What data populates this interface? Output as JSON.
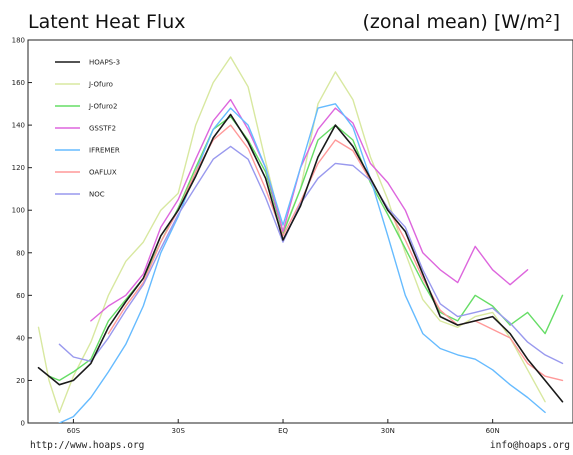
{
  "chart_data": {
    "type": "line",
    "title": "Latent Heat Flux",
    "subtitle": "(zonal mean) [W/m²]",
    "x": [
      -70,
      -67,
      -64,
      -60,
      -55,
      -50,
      -45,
      -40,
      -35,
      -30,
      -25,
      -20,
      -15,
      -10,
      -5,
      0,
      5,
      10,
      15,
      20,
      25,
      30,
      35,
      40,
      45,
      50,
      55,
      60,
      65,
      70,
      75,
      80
    ],
    "xlim": [
      -73,
      83
    ],
    "ylim": [
      0,
      180
    ],
    "x_ticks": [
      -60,
      -30,
      0,
      30,
      60
    ],
    "x_tick_labels": [
      "60S",
      "30S",
      "EQ",
      "30N",
      "60N"
    ],
    "y_ticks": [
      0,
      20,
      40,
      60,
      80,
      100,
      120,
      140,
      160,
      180
    ],
    "y_tick_labels": [
      "0",
      "20",
      "40",
      "60",
      "80",
      "100",
      "120",
      "140",
      "160",
      "180"
    ],
    "grid": false,
    "legend_position": "top-left",
    "series": [
      {
        "name": "HOAPS-3",
        "color": "#1a1a1a",
        "values": [
          26,
          22,
          18,
          20,
          28,
          45,
          57,
          68,
          88,
          100,
          116,
          134,
          145,
          132,
          115,
          86,
          102,
          125,
          140,
          130,
          115,
          100,
          90,
          70,
          50,
          46,
          48,
          50,
          42,
          30,
          20,
          10
        ]
      },
      {
        "name": "J-Ofuro",
        "color": "#d8e8a0",
        "values": [
          45,
          20,
          5,
          22,
          38,
          60,
          76,
          85,
          100,
          108,
          140,
          160,
          172,
          158,
          123,
          90,
          110,
          150,
          165,
          152,
          125,
          105,
          80,
          58,
          48,
          45,
          50,
          52,
          40,
          25,
          10,
          null
        ]
      },
      {
        "name": "J-Ofuro2",
        "color": "#66dd66",
        "values": [
          null,
          22,
          20,
          24,
          30,
          48,
          58,
          68,
          85,
          101,
          120,
          138,
          144,
          133,
          118,
          89,
          110,
          133,
          140,
          133,
          113,
          98,
          82,
          66,
          52,
          48,
          60,
          55,
          46,
          52,
          42,
          60
        ]
      },
      {
        "name": "GSSTF2",
        "color": "#dd66dd",
        "values": [
          null,
          null,
          null,
          null,
          48,
          55,
          60,
          70,
          92,
          105,
          124,
          142,
          152,
          138,
          120,
          90,
          120,
          138,
          148,
          141,
          122,
          113,
          100,
          80,
          72,
          66,
          83,
          72,
          65,
          72,
          null,
          null
        ]
      },
      {
        "name": "IFREMER",
        "color": "#66bbff",
        "values": [
          null,
          null,
          0,
          3,
          12,
          24,
          37,
          55,
          80,
          97,
          118,
          138,
          148,
          140,
          120,
          93,
          120,
          148,
          150,
          139,
          115,
          88,
          60,
          42,
          35,
          32,
          30,
          25,
          18,
          12,
          5,
          null
        ]
      },
      {
        "name": "OAFLUX",
        "color": "#ff9999",
        "values": [
          null,
          null,
          null,
          null,
          null,
          42,
          55,
          66,
          85,
          100,
          118,
          133,
          140,
          129,
          110,
          88,
          104,
          122,
          133,
          128,
          114,
          101,
          86,
          68,
          53,
          46,
          48,
          44,
          40,
          28,
          22,
          20
        ]
      },
      {
        "name": "NOC",
        "color": "#9999ee",
        "values": [
          null,
          null,
          37,
          31,
          29,
          40,
          53,
          65,
          82,
          98,
          111,
          124,
          130,
          124,
          106,
          85,
          103,
          115,
          122,
          121,
          114,
          101,
          92,
          72,
          56,
          50,
          52,
          54,
          47,
          38,
          32,
          28
        ]
      }
    ]
  },
  "footer": {
    "left": "http://www.hoaps.org",
    "right": "info@hoaps.org"
  }
}
